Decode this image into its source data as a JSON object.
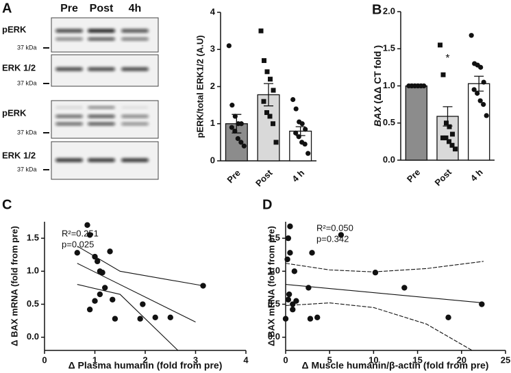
{
  "blot": {
    "label": "A",
    "lanes": [
      "Pre",
      "Post",
      "4h"
    ],
    "rows": [
      {
        "label": "pERK",
        "marker": "37 kDa"
      },
      {
        "label": "ERK 1/2",
        "marker": "37 kDa"
      },
      {
        "label": "pERK",
        "marker": "37 kDa"
      },
      {
        "label": "ERK 1/2",
        "marker": "37 kDa"
      }
    ]
  },
  "chart_data": [
    {
      "type": "bar",
      "ylabel": "pERK/total ERK1/2  (A.U)",
      "categories": [
        "Pre",
        "Post",
        "4 h"
      ],
      "values": [
        1.0,
        1.78,
        0.8
      ],
      "errors": [
        0.25,
        0.3,
        0.12
      ],
      "colors": [
        "#8c8c8c",
        "#d9d9d9",
        "#ffffff"
      ],
      "markers": [
        "circle",
        "square",
        "circle"
      ],
      "points": [
        [
          3.1,
          1.5,
          1.2,
          1.0,
          1.0,
          0.9,
          0.8,
          0.6,
          0.5,
          0.4
        ],
        [
          3.5,
          2.7,
          2.4,
          2.2,
          1.9,
          1.6,
          1.3,
          1.2,
          1.0,
          0.5
        ],
        [
          1.65,
          1.4,
          1.05,
          1.0,
          0.85,
          0.75,
          0.65,
          0.5,
          0.45,
          0.2
        ]
      ],
      "ylim": [
        0,
        4
      ],
      "yticks": [
        0,
        1,
        2,
        3,
        4
      ]
    },
    {
      "type": "bar",
      "panel": "B",
      "ylabel_gene": "BAX",
      "ylabel": "(ΔΔ CT fold )",
      "categories": [
        "Pre",
        "Post",
        "4 h"
      ],
      "values": [
        1.0,
        0.59,
        1.03
      ],
      "errors": [
        0,
        0.13,
        0.1
      ],
      "colors": [
        "#8c8c8c",
        "#d9d9d9",
        "#ffffff"
      ],
      "markers": [
        "circle",
        "square",
        "circle"
      ],
      "annotation": "*",
      "points": [
        [
          1.0,
          1.0,
          1.0,
          1.0,
          1.0,
          1.0,
          1.0,
          1.0,
          1.0,
          1.0
        ],
        [
          1.55,
          1.15,
          0.5,
          0.45,
          0.35,
          0.3,
          0.3,
          0.25,
          0.2,
          0.15
        ],
        [
          1.68,
          1.3,
          1.28,
          1.25,
          1.05,
          0.95,
          0.9,
          0.8,
          0.75,
          0.6
        ]
      ],
      "ylim": [
        0,
        2
      ],
      "yticks": [
        {
          "value": 0,
          "label": "0.0"
        },
        0.5,
        {
          "value": 1,
          "label": "1.0"
        },
        1.5,
        {
          "value": 2,
          "label": "2.0"
        }
      ]
    },
    {
      "type": "scatter",
      "panel": "C",
      "xlabel": "Δ Plasma humanin (fold from pre)",
      "ylabel": "Δ BAX mRNA (fold from pre)",
      "annotations": [
        "R²=0.251",
        "p=0.025"
      ],
      "color": "#111111",
      "x": [
        0.65,
        0.85,
        0.9,
        1.0,
        1.05,
        1.1,
        1.15,
        1.1,
        1.2,
        1.3,
        1.0,
        0.9,
        1.35,
        1.4,
        1.9,
        1.95,
        2.2,
        2.5,
        3.15
      ],
      "values": [
        1.28,
        1.7,
        1.55,
        1.22,
        1.15,
        1.0,
        0.98,
        0.65,
        0.75,
        1.3,
        0.55,
        0.42,
        0.57,
        0.28,
        0.28,
        0.5,
        0.3,
        0.3,
        0.78
      ],
      "lines": [
        {
          "style": "solid",
          "x": [
            0.65,
            3.0
          ],
          "values": [
            1.12,
            0.23
          ]
        },
        {
          "style": "solid",
          "x": [
            0.65,
            1.5,
            3.15
          ],
          "values": [
            1.38,
            1.0,
            0.78
          ]
        },
        {
          "style": "solid",
          "x": [
            0.65,
            1.5,
            2.65
          ],
          "values": [
            0.8,
            0.65,
            -0.2
          ]
        }
      ],
      "xlim": [
        0,
        4
      ],
      "xticks": [
        0,
        1,
        2,
        3,
        4
      ],
      "ylim": [
        -0.2,
        1.75
      ],
      "yticks": [
        {
          "value": 0,
          "label": "0.0"
        },
        0.5,
        {
          "value": 1,
          "label": "1.0"
        },
        1.5
      ]
    },
    {
      "type": "scatter",
      "panel": "D",
      "xlabel": "Δ Muscle humanin/β-actin (fold from pre)",
      "ylabel": "Δ BAX mRNA (fold from pre)",
      "annotations": [
        "R²=0.050",
        "p=0.342"
      ],
      "color": "#111111",
      "x": [
        0.0,
        0.2,
        0.3,
        0.5,
        0.5,
        0.4,
        0.3,
        0.8,
        0.8,
        1.0,
        1.2,
        2.6,
        3.0,
        2.8,
        3.6,
        6.3,
        10.2,
        13.5,
        18.5,
        22.3
      ],
      "values": [
        0.28,
        1.18,
        1.5,
        1.68,
        1.28,
        0.65,
        0.57,
        0.5,
        0.42,
        1.0,
        0.55,
        0.75,
        1.28,
        0.28,
        0.3,
        1.55,
        0.98,
        0.75,
        0.3,
        0.5
      ],
      "lines": [
        {
          "style": "solid",
          "x": [
            0,
            22.5
          ],
          "values": [
            0.8,
            0.52
          ]
        },
        {
          "style": "dashed",
          "x": [
            0,
            5,
            10,
            16,
            22.5
          ],
          "values": [
            1.12,
            1.02,
            0.99,
            1.04,
            1.15
          ]
        },
        {
          "style": "dashed",
          "x": [
            0,
            5,
            10,
            16,
            21.2
          ],
          "values": [
            0.48,
            0.52,
            0.45,
            0.2,
            -0.2
          ]
        }
      ],
      "xlim": [
        0,
        25
      ],
      "xticks": [
        0,
        5,
        10,
        15,
        20,
        25
      ],
      "ylim": [
        -0.2,
        1.75
      ],
      "yticks": [
        {
          "value": 0,
          "label": "0.0"
        },
        0.5,
        {
          "value": 1,
          "label": "1.0"
        },
        1.5
      ]
    }
  ]
}
